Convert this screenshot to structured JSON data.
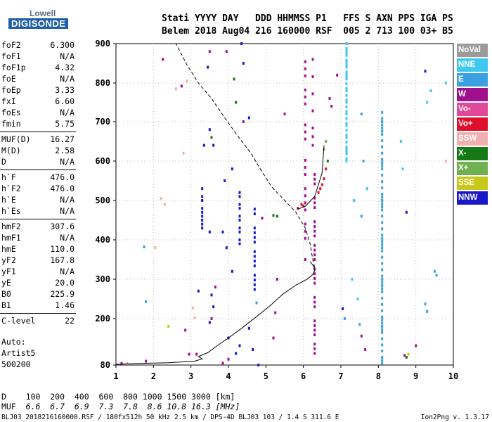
{
  "logo": {
    "line1": "Lowell",
    "line2": "DIGISONDE"
  },
  "header": {
    "line1": "Stati YYYY DAY   DDD HHMMSS P1   FFS S AXN PPS IGA PS",
    "line2": "Belem 2018 Aug04 216 160000 RSF  005 2 713 100 03+ B5"
  },
  "params": [
    {
      "name": "foF2",
      "value": "6.300"
    },
    {
      "name": "foF1",
      "value": "N/A"
    },
    {
      "name": "foF1p",
      "value": "4.32"
    },
    {
      "name": "foE",
      "value": "N/A"
    },
    {
      "name": "foEp",
      "value": "3.33"
    },
    {
      "name": "fxI",
      "value": "6.60"
    },
    {
      "name": "foEs",
      "value": "N/A"
    },
    {
      "name": "fmin",
      "value": "5.75"
    },
    {
      "name": "MUF(D)",
      "value": "16.27"
    },
    {
      "name": "M(D)",
      "value": "2.58"
    },
    {
      "name": "D",
      "value": "N/A"
    },
    {
      "name": "h`F",
      "value": "476.0"
    },
    {
      "name": "h`F2",
      "value": "476.0"
    },
    {
      "name": "h`E",
      "value": "N/A"
    },
    {
      "name": "h`Es",
      "value": "N/A"
    },
    {
      "name": "hmF2",
      "value": "307.6"
    },
    {
      "name": "hmF1",
      "value": "N/A"
    },
    {
      "name": "hmE",
      "value": "110.0"
    },
    {
      "name": "yF2",
      "value": "167.8"
    },
    {
      "name": "yF1",
      "value": "N/A"
    },
    {
      "name": "yE",
      "value": "20.0"
    },
    {
      "name": "B0",
      "value": "225.9"
    },
    {
      "name": "B1",
      "value": "1.46"
    },
    {
      "name": "C-level",
      "value": "22"
    }
  ],
  "autoscaling": {
    "label": "Auto:",
    "system": "Artist5",
    "code": "500200"
  },
  "legend": [
    {
      "label": "NoVal",
      "color": "#9b9b9b"
    },
    {
      "label": "NNE",
      "color": "#3ec8f0"
    },
    {
      "label": "E",
      "color": "#3aa0e0"
    },
    {
      "label": "W",
      "color": "#a0108c"
    },
    {
      "label": "Vo-",
      "color": "#e04898"
    },
    {
      "label": "Vo+",
      "color": "#e0102c"
    },
    {
      "label": "SSW",
      "color": "#f0b0b0"
    },
    {
      "label": "X-",
      "color": "#157a15"
    },
    {
      "label": "X+",
      "color": "#70b050"
    },
    {
      "label": "SSE",
      "color": "#c8c818"
    },
    {
      "label": "NNW",
      "color": "#1818c8"
    }
  ],
  "muf_table": {
    "d_label": "D",
    "d_values": "100  200  400  600  800 1000 1500 3000 [km]",
    "muf_label": "MUF",
    "muf_values": "6.6  6.7  6.9  7.3  7.8  8.6 10.8 16.3 [MHz]"
  },
  "footer": {
    "info": "BLJ03_2018216160000.RSF / 180fx512h 50 kHz 2.5 km / DPS-4D BLJ03 103 / 1.4 S 311.6 E",
    "version": "Ion2Png v. 1.3.17"
  },
  "chart_data": {
    "type": "scatter",
    "xlim": [
      1,
      10
    ],
    "ylim": [
      80,
      900
    ],
    "x_ticks": [
      1,
      2,
      3,
      4,
      5,
      6,
      7,
      8,
      9,
      10
    ],
    "y_ticks": [
      80,
      200,
      300,
      400,
      500,
      600,
      700,
      800,
      900
    ],
    "grid": true,
    "profile_solid": [
      [
        1.0,
        82
      ],
      [
        1.6,
        84
      ],
      [
        2.4,
        86
      ],
      [
        3.1,
        90
      ],
      [
        3.3,
        96
      ],
      [
        3.2,
        102
      ],
      [
        3.45,
        112
      ],
      [
        3.7,
        130
      ],
      [
        4.0,
        150
      ],
      [
        4.35,
        175
      ],
      [
        4.75,
        205
      ],
      [
        5.1,
        232
      ],
      [
        5.45,
        262
      ],
      [
        5.8,
        285
      ],
      [
        6.1,
        300
      ],
      [
        6.25,
        312
      ],
      [
        6.3,
        322
      ],
      [
        6.28,
        332
      ],
      [
        6.18,
        345
      ]
    ],
    "profile_dashed": [
      [
        6.3,
        330
      ],
      [
        6.25,
        350
      ],
      [
        6.18,
        390
      ],
      [
        6.05,
        430
      ],
      [
        5.8,
        470
      ],
      [
        5.5,
        500
      ],
      [
        5.15,
        535
      ],
      [
        4.85,
        580
      ],
      [
        4.6,
        620
      ],
      [
        4.2,
        670
      ],
      [
        3.9,
        710
      ],
      [
        3.55,
        760
      ],
      [
        3.2,
        800
      ],
      [
        2.9,
        845
      ],
      [
        2.6,
        900
      ]
    ],
    "profile_upper": [
      [
        5.85,
        478
      ],
      [
        6.05,
        485
      ],
      [
        6.3,
        510
      ],
      [
        6.5,
        570
      ],
      [
        6.55,
        640
      ]
    ],
    "echo_columns": [
      {
        "f": 6.3,
        "y0": 110,
        "y1": 600,
        "color": "#a0108c",
        "step": 12
      },
      {
        "f": 6.05,
        "y0": 350,
        "y1": 900,
        "color": "#a0108c",
        "step": 18
      },
      {
        "f": 6.25,
        "y0": 640,
        "y1": 900,
        "color": "#a0108c",
        "step": 22
      },
      {
        "f": 8.1,
        "y0": 84,
        "y1": 730,
        "color": "#3aa0e0",
        "step": 8
      },
      {
        "f": 7.15,
        "y0": 600,
        "y1": 900,
        "color": "#3ec8f0",
        "step": 6
      },
      {
        "f": 4.3,
        "y0": 380,
        "y1": 520,
        "color": "#1818c8",
        "step": 10
      },
      {
        "f": 4.7,
        "y0": 250,
        "y1": 480,
        "color": "#1818c8",
        "step": 12
      },
      {
        "f": 3.3,
        "y0": 420,
        "y1": 530,
        "color": "#1818c8",
        "step": 10
      }
    ],
    "echoes": [
      {
        "f": 6.0,
        "h": 486,
        "c": "#e0102c"
      },
      {
        "f": 6.45,
        "h": 530,
        "c": "#e0102c"
      },
      {
        "f": 6.55,
        "h": 555,
        "c": "#e0102c"
      },
      {
        "f": 6.6,
        "h": 580,
        "c": "#e0102c"
      },
      {
        "f": 6.5,
        "h": 540,
        "c": "#e0102c"
      },
      {
        "f": 5.85,
        "h": 480,
        "c": "#e0102c"
      },
      {
        "f": 5.95,
        "h": 490,
        "c": "#e0102c"
      },
      {
        "f": 6.4,
        "h": 520,
        "c": "#e0102c"
      },
      {
        "f": 6.6,
        "h": 650,
        "c": "#70b050"
      },
      {
        "f": 6.55,
        "h": 630,
        "c": "#70b050"
      },
      {
        "f": 6.65,
        "h": 600,
        "c": "#157a15"
      },
      {
        "f": 4.15,
        "h": 810,
        "c": "#157a15"
      },
      {
        "f": 5.2,
        "h": 462,
        "c": "#157a15"
      },
      {
        "f": 3.55,
        "h": 660,
        "c": "#157a15"
      },
      {
        "f": 8.75,
        "h": 100,
        "c": "#157a15"
      },
      {
        "f": 2.6,
        "h": 785,
        "c": "#f0b0b0"
      },
      {
        "f": 2.9,
        "h": 805,
        "c": "#f0b0b0"
      },
      {
        "f": 2.8,
        "h": 620,
        "c": "#f0b0b0"
      },
      {
        "f": 2.2,
        "h": 505,
        "c": "#f0b0b0"
      },
      {
        "f": 2.3,
        "h": 490,
        "c": "#f0b0b0"
      },
      {
        "f": 3.05,
        "h": 227,
        "c": "#f0b0b0"
      },
      {
        "f": 3.1,
        "h": 202,
        "c": "#f0b0b0"
      },
      {
        "f": 1.3,
        "h": 84,
        "c": "#f0b0b0"
      },
      {
        "f": 2.05,
        "h": 380,
        "c": "#f0b0b0"
      },
      {
        "f": 9.8,
        "h": 600,
        "c": "#f0b0b0"
      },
      {
        "f": 2.4,
        "h": 180,
        "c": "#c8c818"
      },
      {
        "f": 8.8,
        "h": 108,
        "c": "#c8c818"
      },
      {
        "f": 1.75,
        "h": 382,
        "c": "#3aa0e0"
      },
      {
        "f": 1.8,
        "h": 243,
        "c": "#3aa0e0"
      },
      {
        "f": 9.5,
        "h": 320,
        "c": "#3aa0e0"
      },
      {
        "f": 9.55,
        "h": 310,
        "c": "#3aa0e0"
      },
      {
        "f": 9.3,
        "h": 750,
        "c": "#3ec8f0"
      },
      {
        "f": 9.4,
        "h": 780,
        "c": "#3ec8f0"
      },
      {
        "f": 7.6,
        "h": 600,
        "c": "#3aa0e0"
      },
      {
        "f": 7.55,
        "h": 460,
        "c": "#3aa0e0"
      },
      {
        "f": 7.7,
        "h": 530,
        "c": "#3ec8f0"
      },
      {
        "f": 7.35,
        "h": 500,
        "c": "#3ec8f0"
      },
      {
        "f": 7.3,
        "h": 300,
        "c": "#3ec8f0"
      },
      {
        "f": 9.8,
        "h": 800,
        "c": "#3ec8f0"
      },
      {
        "f": 7.1,
        "h": 200,
        "c": "#3aa0e0"
      },
      {
        "f": 7.45,
        "h": 250,
        "c": "#3ec8f0"
      },
      {
        "f": 7.5,
        "h": 185,
        "c": "#3aa0e0"
      },
      {
        "f": 9.25,
        "h": 237,
        "c": "#3aa0e0"
      },
      {
        "f": 9.3,
        "h": 218,
        "c": "#3aa0e0"
      },
      {
        "f": 7.55,
        "h": 720,
        "c": "#3aa0e0"
      },
      {
        "f": 8.6,
        "h": 650,
        "c": "#3ec8f0"
      },
      {
        "f": 8.65,
        "h": 580,
        "c": "#3ec8f0"
      },
      {
        "f": 6.9,
        "h": 820,
        "c": "#a0108c"
      },
      {
        "f": 6.7,
        "h": 760,
        "c": "#a0108c"
      },
      {
        "f": 6.75,
        "h": 740,
        "c": "#a0108c"
      },
      {
        "f": 7.55,
        "h": 155,
        "c": "#a0108c"
      },
      {
        "f": 7.65,
        "h": 120,
        "c": "#a0108c"
      },
      {
        "f": 5.5,
        "h": 720,
        "c": "#a0108c"
      },
      {
        "f": 5.3,
        "h": 300,
        "c": "#a0108c"
      },
      {
        "f": 5.25,
        "h": 215,
        "c": "#a0108c"
      },
      {
        "f": 5.2,
        "h": 150,
        "c": "#a0108c"
      },
      {
        "f": 2.75,
        "h": 792,
        "c": "#a0108c"
      },
      {
        "f": 2.85,
        "h": 170,
        "c": "#a0108c"
      },
      {
        "f": 2.95,
        "h": 108,
        "c": "#a0108c"
      },
      {
        "f": 3.15,
        "h": 108,
        "c": "#a0108c"
      },
      {
        "f": 1.15,
        "h": 84,
        "c": "#a0108c"
      },
      {
        "f": 1.8,
        "h": 90,
        "c": "#a0108c"
      },
      {
        "f": 3.55,
        "h": 200,
        "c": "#a0108c"
      },
      {
        "f": 3.85,
        "h": 85,
        "c": "#a0108c"
      },
      {
        "f": 4.0,
        "h": 95,
        "c": "#a0108c"
      },
      {
        "f": 4.4,
        "h": 700,
        "c": "#a0108c"
      },
      {
        "f": 3.65,
        "h": 280,
        "c": "#a0108c"
      },
      {
        "f": 4.9,
        "h": 455,
        "c": "#a0108c"
      },
      {
        "f": 9.0,
        "h": 130,
        "c": "#a0108c"
      },
      {
        "f": 8.7,
        "h": 105,
        "c": "#a0108c"
      },
      {
        "f": 2.25,
        "h": 860,
        "c": "#a0108c"
      },
      {
        "f": 3.5,
        "h": 880,
        "c": "#a0108c"
      },
      {
        "f": 3.95,
        "h": 880,
        "c": "#a0108c"
      },
      {
        "f": 4.35,
        "h": 900,
        "c": "#1818c8"
      },
      {
        "f": 4.4,
        "h": 850,
        "c": "#1818c8"
      },
      {
        "f": 3.45,
        "h": 840,
        "c": "#1818c8"
      },
      {
        "f": 4.55,
        "h": 710,
        "c": "#1818c8"
      },
      {
        "f": 3.5,
        "h": 680,
        "c": "#1818c8"
      },
      {
        "f": 3.6,
        "h": 640,
        "c": "#1818c8"
      },
      {
        "f": 3.35,
        "h": 640,
        "c": "#1818c8"
      },
      {
        "f": 4.1,
        "h": 580,
        "c": "#1818c8"
      },
      {
        "f": 3.9,
        "h": 550,
        "c": "#1818c8"
      },
      {
        "f": 3.85,
        "h": 420,
        "c": "#1818c8"
      },
      {
        "f": 3.95,
        "h": 380,
        "c": "#1818c8"
      },
      {
        "f": 4.1,
        "h": 320,
        "c": "#1818c8"
      },
      {
        "f": 3.5,
        "h": 190,
        "c": "#1818c8"
      },
      {
        "f": 3.6,
        "h": 230,
        "c": "#1818c8"
      },
      {
        "f": 3.55,
        "h": 260,
        "c": "#1818c8"
      },
      {
        "f": 3.2,
        "h": 270,
        "c": "#1818c8"
      },
      {
        "f": 4.0,
        "h": 150,
        "c": "#1818c8"
      },
      {
        "f": 4.2,
        "h": 110,
        "c": "#1818c8"
      },
      {
        "f": 4.3,
        "h": 130,
        "c": "#1818c8"
      },
      {
        "f": 4.65,
        "h": 120,
        "c": "#1818c8"
      },
      {
        "f": 4.55,
        "h": 175,
        "c": "#1818c8"
      },
      {
        "f": 4.8,
        "h": 80,
        "c": "#1818c8"
      },
      {
        "f": 9.25,
        "h": 830,
        "c": "#1818c8"
      },
      {
        "f": 8.75,
        "h": 470,
        "c": "#1818c8"
      },
      {
        "f": 7.05,
        "h": 225,
        "c": "#1818c8"
      },
      {
        "f": 3.5,
        "h": 420,
        "c": "#1818c8"
      },
      {
        "f": 4.75,
        "h": 240,
        "c": "#3aa0e0"
      },
      {
        "f": 4.2,
        "h": 750,
        "c": "#157a15"
      },
      {
        "f": 5.3,
        "h": 460,
        "c": "#157a15"
      }
    ]
  }
}
